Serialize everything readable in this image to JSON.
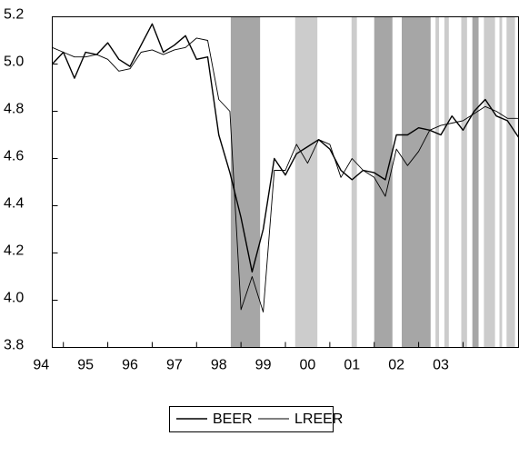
{
  "chart_data": {
    "type": "line",
    "x": [
      1993.75,
      1994.0,
      1994.25,
      1994.5,
      1994.75,
      1995.0,
      1995.25,
      1995.5,
      1995.75,
      1996.0,
      1996.25,
      1996.5,
      1996.75,
      1997.0,
      1997.25,
      1997.5,
      1997.75,
      1998.0,
      1998.25,
      1998.5,
      1998.75,
      1999.0,
      1999.25,
      1999.5,
      1999.75,
      2000.0,
      2000.25,
      2000.5,
      2000.75,
      2001.0,
      2001.25,
      2001.5,
      2001.75,
      2002.0,
      2002.25,
      2002.5,
      2002.75,
      2003.0,
      2003.25,
      2003.5,
      2003.75,
      2004.0,
      2004.25
    ],
    "series": [
      {
        "name": "BEER",
        "color": "#000000",
        "values": [
          5.0,
          5.05,
          4.94,
          5.05,
          5.04,
          5.09,
          5.02,
          4.99,
          5.08,
          5.17,
          5.05,
          5.08,
          5.12,
          5.02,
          5.03,
          4.7,
          4.54,
          4.35,
          4.12,
          4.3,
          4.6,
          4.53,
          4.62,
          4.65,
          4.68,
          4.64,
          4.55,
          4.51,
          4.55,
          4.54,
          4.51,
          4.7,
          4.7,
          4.73,
          4.72,
          4.7,
          4.78,
          4.72,
          4.8,
          4.85,
          4.78,
          4.76,
          4.69
        ]
      },
      {
        "name": "LREER",
        "color": "#000000",
        "values": [
          5.07,
          5.05,
          5.03,
          5.03,
          5.04,
          5.02,
          4.97,
          4.98,
          5.05,
          5.06,
          5.04,
          5.06,
          5.07,
          5.11,
          5.1,
          4.85,
          4.8,
          3.96,
          4.1,
          3.95,
          4.55,
          4.55,
          4.66,
          4.58,
          4.68,
          4.66,
          4.52,
          4.6,
          4.55,
          4.52,
          4.44,
          4.64,
          4.57,
          4.63,
          4.72,
          4.74,
          4.75,
          4.76,
          4.79,
          4.82,
          4.8,
          4.77,
          4.77
        ]
      }
    ],
    "xlim": [
      1993.75,
      2004.25
    ],
    "xticks": [
      {
        "value": 1994,
        "label": "94"
      },
      {
        "value": 1995,
        "label": "95"
      },
      {
        "value": 1996,
        "label": "96"
      },
      {
        "value": 1997,
        "label": "97"
      },
      {
        "value": 1998,
        "label": "98"
      },
      {
        "value": 1999,
        "label": "99"
      },
      {
        "value": 2000,
        "label": "00"
      },
      {
        "value": 2001,
        "label": "01"
      },
      {
        "value": 2002,
        "label": "02"
      },
      {
        "value": 2003,
        "label": "03"
      }
    ],
    "ylim": [
      3.8,
      5.2
    ],
    "yticks": [
      3.8,
      {
        "value": 4,
        "label": "4.0"
      },
      4.2,
      4.4,
      4.6,
      4.8,
      {
        "value": 5,
        "label": "5.0"
      },
      5.2
    ],
    "shaded": [
      {
        "start": 1997.77,
        "end": 1998.43,
        "color": "#a6a6a6"
      },
      {
        "start": 1999.22,
        "end": 1999.72,
        "color": "#cccccc"
      },
      {
        "start": 2000.49,
        "end": 2000.61,
        "color": "#cccccc"
      },
      {
        "start": 2001.0,
        "end": 2001.41,
        "color": "#a6a6a6"
      },
      {
        "start": 2001.62,
        "end": 2002.27,
        "color": "#a6a6a6"
      },
      {
        "start": 2002.38,
        "end": 2002.46,
        "color": "#cccccc"
      },
      {
        "start": 2002.58,
        "end": 2002.68,
        "color": "#cccccc"
      },
      {
        "start": 2002.96,
        "end": 2003.09,
        "color": "#cccccc"
      },
      {
        "start": 2003.21,
        "end": 2003.35,
        "color": "#a6a6a6"
      },
      {
        "start": 2003.47,
        "end": 2003.72,
        "color": "#cccccc"
      },
      {
        "start": 2003.82,
        "end": 2003.88,
        "color": "#cccccc"
      },
      {
        "start": 2003.98,
        "end": 2004.17,
        "color": "#cccccc"
      }
    ],
    "legend": "bottom"
  }
}
